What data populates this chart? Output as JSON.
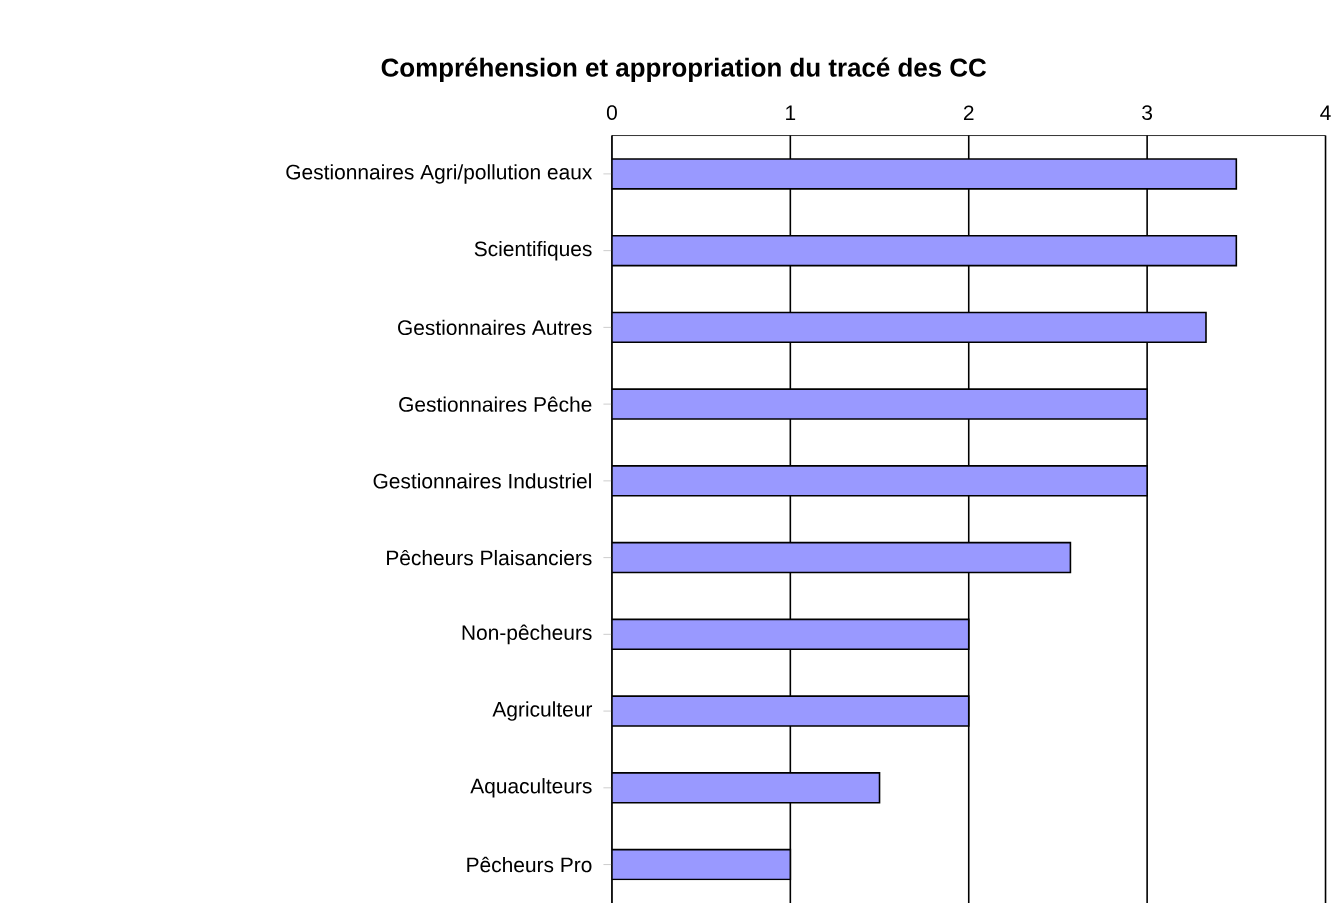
{
  "chart_data": {
    "type": "bar",
    "orientation": "horizontal",
    "title": "Compréhension et appropriation du tracé des CC",
    "categories": [
      "Gestionnaires Agri/pollution eaux",
      "Scientifiques",
      "Gestionnaires Autres",
      "Gestionnaires Pêche",
      "Gestionnaires Industriel",
      "Pêcheurs Plaisanciers",
      "Non-pêcheurs",
      "Agriculteur",
      "Aquaculteurs",
      "Pêcheurs Pro"
    ],
    "values": [
      3.5,
      3.5,
      3.33,
      3,
      3,
      2.57,
      2,
      2,
      1.5,
      1
    ],
    "color": "#9999ff",
    "xlim": [
      0,
      4
    ],
    "xticks": [
      0,
      1,
      2,
      3,
      4
    ],
    "grid": "x"
  }
}
